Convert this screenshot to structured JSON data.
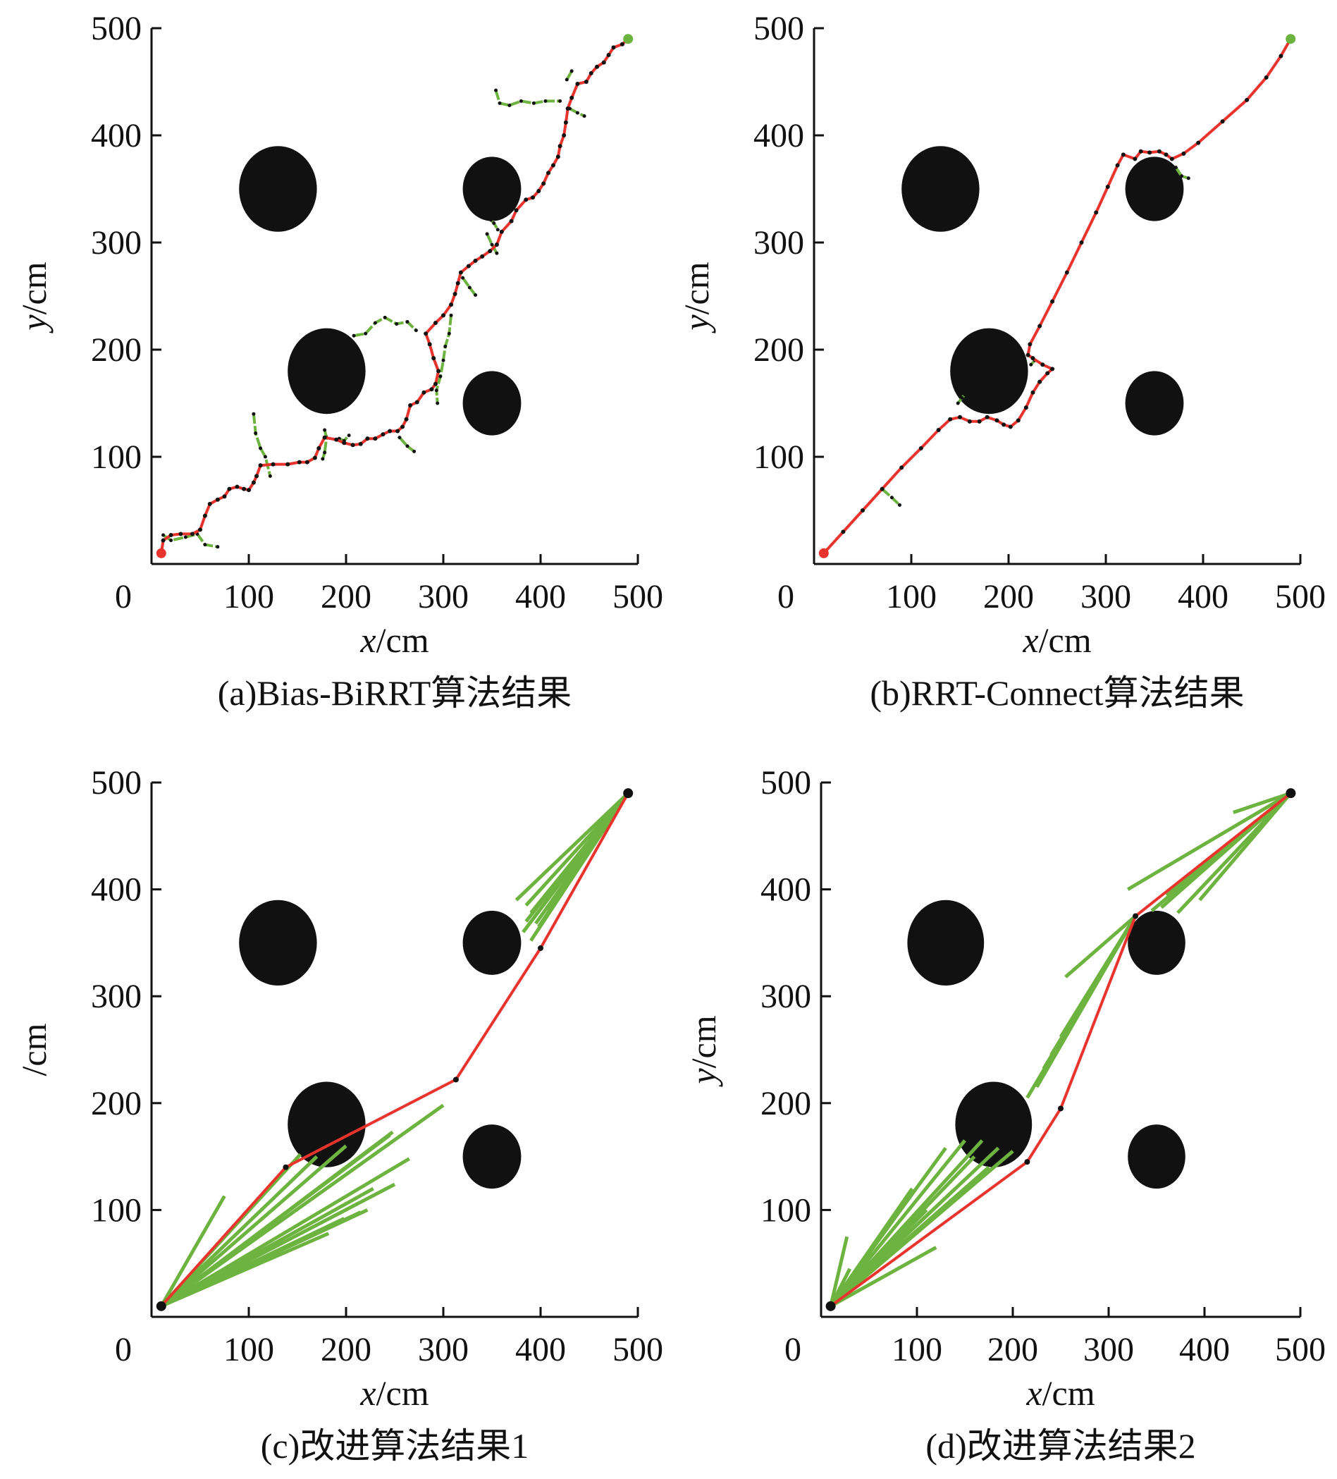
{
  "colors": {
    "path": "#e8342c",
    "tree": "#6db33f",
    "obstacle": "#111111",
    "node": "#111111",
    "axis": "#111111"
  },
  "chart_data": [
    {
      "type": "scatter",
      "caption": "(a)Bias-BiRRT算法结果",
      "xlabel_var": "x",
      "xlabel_unit": "/cm",
      "ylabel_var": "y",
      "ylabel_unit": "/cm",
      "xlim": [
        0,
        500
      ],
      "ylim": [
        0,
        500
      ],
      "xticks": [
        "0",
        "100",
        "200",
        "300",
        "400",
        "500"
      ],
      "yticks": [
        "100",
        "200",
        "300",
        "400",
        "500"
      ],
      "obstacles": [
        {
          "cx": 130,
          "cy": 350,
          "rx": 40,
          "ry": 40
        },
        {
          "cx": 180,
          "cy": 180,
          "rx": 40,
          "ry": 40
        },
        {
          "cx": 350,
          "cy": 350,
          "rx": 30,
          "ry": 30
        },
        {
          "cx": 350,
          "cy": 150,
          "rx": 30,
          "ry": 30
        }
      ],
      "start": [
        10,
        10
      ],
      "goal": [
        490,
        490
      ],
      "start_color": "#e8342c",
      "goal_color": "#6db33f",
      "branches": [
        [
          [
            12,
            27
          ],
          [
            20,
            22
          ],
          [
            35,
            25
          ],
          [
            47,
            28
          ],
          [
            55,
            18
          ],
          [
            68,
            16
          ]
        ],
        [
          [
            105,
            140
          ],
          [
            107,
            122
          ],
          [
            112,
            108
          ],
          [
            117,
            100
          ],
          [
            122,
            82
          ]
        ],
        [
          [
            178,
            125
          ],
          [
            180,
            118
          ],
          [
            178,
            104
          ],
          [
            176,
            98
          ]
        ],
        [
          [
            193,
            117
          ],
          [
            198,
            115
          ],
          [
            203,
            120
          ]
        ],
        [
          [
            255,
            118
          ],
          [
            263,
            110
          ],
          [
            270,
            105
          ]
        ],
        [
          [
            208,
            213
          ],
          [
            220,
            215
          ],
          [
            230,
            225
          ],
          [
            240,
            230
          ],
          [
            252,
            224
          ],
          [
            263,
            226
          ],
          [
            272,
            218
          ]
        ],
        [
          [
            308,
            232
          ],
          [
            306,
            215
          ],
          [
            302,
            203
          ],
          [
            300,
            190
          ],
          [
            297,
            175
          ],
          [
            293,
            162
          ],
          [
            294,
            150
          ]
        ],
        [
          [
            320,
            267
          ],
          [
            327,
            258
          ],
          [
            333,
            251
          ]
        ],
        [
          [
            345,
            308
          ],
          [
            350,
            298
          ],
          [
            355,
            290
          ]
        ],
        [
          [
            349,
            321
          ],
          [
            352,
            318
          ],
          [
            356,
            312
          ]
        ],
        [
          [
            354,
            442
          ],
          [
            358,
            430
          ],
          [
            368,
            428
          ],
          [
            380,
            432
          ],
          [
            393,
            430
          ],
          [
            405,
            432
          ],
          [
            420,
            432
          ]
        ],
        [
          [
            432,
            460
          ],
          [
            427,
            452
          ]
        ],
        [
          [
            430,
            425
          ],
          [
            438,
            421
          ],
          [
            445,
            418
          ]
        ]
      ],
      "path": [
        [
          10,
          10
        ],
        [
          12,
          22
        ],
        [
          20,
          27
        ],
        [
          30,
          28
        ],
        [
          42,
          28
        ],
        [
          50,
          32
        ],
        [
          55,
          45
        ],
        [
          60,
          56
        ],
        [
          68,
          60
        ],
        [
          75,
          63
        ],
        [
          80,
          70
        ],
        [
          88,
          72
        ],
        [
          95,
          70
        ],
        [
          100,
          69
        ],
        [
          105,
          76
        ],
        [
          108,
          82
        ],
        [
          112,
          92
        ],
        [
          125,
          93
        ],
        [
          140,
          93
        ],
        [
          152,
          95
        ],
        [
          160,
          95
        ],
        [
          168,
          99
        ],
        [
          172,
          108
        ],
        [
          178,
          118
        ],
        [
          190,
          116
        ],
        [
          198,
          113
        ],
        [
          207,
          111
        ],
        [
          215,
          112
        ],
        [
          222,
          117
        ],
        [
          230,
          117
        ],
        [
          238,
          121
        ],
        [
          245,
          124
        ],
        [
          253,
          124
        ],
        [
          258,
          128
        ],
        [
          262,
          135
        ],
        [
          266,
          148
        ],
        [
          273,
          151
        ],
        [
          280,
          160
        ],
        [
          288,
          163
        ],
        [
          292,
          168
        ],
        [
          295,
          180
        ],
        [
          290,
          192
        ],
        [
          286,
          205
        ],
        [
          282,
          215
        ],
        [
          292,
          225
        ],
        [
          300,
          232
        ],
        [
          308,
          242
        ],
        [
          312,
          252
        ],
        [
          315,
          262
        ],
        [
          318,
          272
        ],
        [
          326,
          278
        ],
        [
          333,
          283
        ],
        [
          340,
          287
        ],
        [
          348,
          292
        ],
        [
          355,
          298
        ],
        [
          360,
          310
        ],
        [
          370,
          320
        ],
        [
          375,
          330
        ],
        [
          385,
          340
        ],
        [
          392,
          342
        ],
        [
          398,
          348
        ],
        [
          403,
          355
        ],
        [
          408,
          365
        ],
        [
          413,
          372
        ],
        [
          418,
          380
        ],
        [
          420,
          390
        ],
        [
          424,
          400
        ],
        [
          426,
          412
        ],
        [
          428,
          425
        ],
        [
          432,
          435
        ],
        [
          438,
          448
        ],
        [
          447,
          450
        ],
        [
          452,
          458
        ],
        [
          458,
          464
        ],
        [
          465,
          468
        ],
        [
          470,
          475
        ],
        [
          475,
          482
        ],
        [
          484,
          485
        ],
        [
          490,
          490
        ]
      ]
    },
    {
      "type": "scatter",
      "caption": "(b)RRT-Connect算法结果",
      "xlabel_var": "x",
      "xlabel_unit": "/cm",
      "ylabel_var": "y",
      "ylabel_unit": "/cm",
      "xlim": [
        0,
        500
      ],
      "ylim": [
        0,
        500
      ],
      "xticks": [
        "0",
        "100",
        "200",
        "300",
        "400",
        "500"
      ],
      "yticks": [
        "100",
        "200",
        "300",
        "400",
        "500"
      ],
      "obstacles": [
        {
          "cx": 130,
          "cy": 350,
          "rx": 40,
          "ry": 40
        },
        {
          "cx": 180,
          "cy": 180,
          "rx": 40,
          "ry": 40
        },
        {
          "cx": 350,
          "cy": 350,
          "rx": 30,
          "ry": 30
        },
        {
          "cx": 350,
          "cy": 150,
          "rx": 30,
          "ry": 30
        }
      ],
      "start": [
        10,
        10
      ],
      "goal": [
        490,
        490
      ],
      "start_color": "#e8342c",
      "goal_color": "#6db33f",
      "branches": [
        [
          [
            70,
            70
          ],
          [
            80,
            62
          ],
          [
            88,
            55
          ]
        ],
        [
          [
            148,
            150
          ],
          [
            152,
            155
          ],
          [
            155,
            158
          ]
        ],
        [
          [
            223,
            186
          ],
          [
            227,
            190
          ]
        ],
        [
          [
            372,
            370
          ],
          [
            378,
            362
          ],
          [
            385,
            360
          ]
        ]
      ],
      "path": [
        [
          10,
          10
        ],
        [
          30,
          30
        ],
        [
          50,
          50
        ],
        [
          70,
          70
        ],
        [
          90,
          90
        ],
        [
          110,
          108
        ],
        [
          128,
          125
        ],
        [
          140,
          135
        ],
        [
          150,
          137
        ],
        [
          160,
          133
        ],
        [
          170,
          133
        ],
        [
          178,
          137
        ],
        [
          188,
          134
        ],
        [
          195,
          130
        ],
        [
          202,
          128
        ],
        [
          210,
          134
        ],
        [
          218,
          146
        ],
        [
          225,
          160
        ],
        [
          232,
          170
        ],
        [
          240,
          178
        ],
        [
          245,
          182
        ],
        [
          235,
          186
        ],
        [
          225,
          192
        ],
        [
          220,
          195
        ],
        [
          222,
          205
        ],
        [
          232,
          222
        ],
        [
          245,
          245
        ],
        [
          260,
          272
        ],
        [
          275,
          300
        ],
        [
          290,
          328
        ],
        [
          302,
          352
        ],
        [
          312,
          372
        ],
        [
          318,
          382
        ],
        [
          330,
          378
        ],
        [
          336,
          385
        ],
        [
          345,
          384
        ],
        [
          355,
          385
        ],
        [
          362,
          382
        ],
        [
          368,
          378
        ],
        [
          380,
          383
        ],
        [
          395,
          393
        ],
        [
          420,
          413
        ],
        [
          445,
          433
        ],
        [
          465,
          454
        ],
        [
          480,
          474
        ],
        [
          490,
          490
        ]
      ]
    },
    {
      "type": "scatter",
      "caption": "(c)改进算法结果1",
      "xlabel_var": "x",
      "xlabel_unit": "/cm",
      "ylabel_var": "",
      "ylabel_unit": "/cm",
      "xlim": [
        0,
        500
      ],
      "ylim": [
        0,
        500
      ],
      "xticks": [
        "0",
        "100",
        "200",
        "300",
        "400",
        "500"
      ],
      "yticks": [
        "100",
        "200",
        "300",
        "400",
        "500"
      ],
      "obstacles": [
        {
          "cx": 130,
          "cy": 350,
          "rx": 40,
          "ry": 40
        },
        {
          "cx": 180,
          "cy": 180,
          "rx": 40,
          "ry": 40
        },
        {
          "cx": 350,
          "cy": 350,
          "rx": 30,
          "ry": 30
        },
        {
          "cx": 350,
          "cy": 150,
          "rx": 30,
          "ry": 30
        }
      ],
      "start": [
        10,
        10
      ],
      "goal": [
        490,
        490
      ],
      "start_color": "#111111",
      "goal_color": "#111111",
      "fans_from_start": [
        [
          75,
          113
        ],
        [
          153,
          152
        ],
        [
          170,
          150
        ],
        [
          200,
          160
        ],
        [
          248,
          173
        ],
        [
          265,
          148
        ],
        [
          250,
          124
        ],
        [
          222,
          100
        ],
        [
          198,
          92
        ],
        [
          182,
          78
        ],
        [
          245,
          170
        ],
        [
          300,
          198
        ],
        [
          215,
          98
        ],
        [
          228,
          120
        ]
      ],
      "fans_from_goal": [
        [
          375,
          390
        ],
        [
          382,
          360
        ],
        [
          390,
          378
        ],
        [
          395,
          368
        ],
        [
          390,
          352
        ],
        [
          385,
          385
        ],
        [
          410,
          400
        ],
        [
          398,
          365
        ],
        [
          385,
          370
        ],
        [
          408,
          380
        ]
      ],
      "path": [
        [
          10,
          10
        ],
        [
          138,
          140
        ],
        [
          313,
          222
        ],
        [
          400,
          345
        ],
        [
          490,
          490
        ]
      ]
    },
    {
      "type": "scatter",
      "caption": "(d)改进算法结果2",
      "xlabel_var": "x",
      "xlabel_unit": "/cm",
      "ylabel_var": "y",
      "ylabel_unit": "/cm",
      "xlim": [
        0,
        500
      ],
      "ylim": [
        0,
        500
      ],
      "xticks": [
        "0",
        "100",
        "200",
        "300",
        "400",
        "500"
      ],
      "yticks": [
        "100",
        "200",
        "300",
        "400",
        "500"
      ],
      "obstacles": [
        {
          "cx": 130,
          "cy": 350,
          "rx": 40,
          "ry": 40
        },
        {
          "cx": 180,
          "cy": 180,
          "rx": 40,
          "ry": 40
        },
        {
          "cx": 350,
          "cy": 350,
          "rx": 30,
          "ry": 30
        },
        {
          "cx": 350,
          "cy": 150,
          "rx": 30,
          "ry": 30
        }
      ],
      "start": [
        10,
        10
      ],
      "goal": [
        490,
        490
      ],
      "start_color": "#111111",
      "goal_color": "#111111",
      "fans_from_start": [
        [
          27,
          75
        ],
        [
          30,
          45
        ],
        [
          95,
          120
        ],
        [
          130,
          158
        ],
        [
          150,
          165
        ],
        [
          168,
          165
        ],
        [
          185,
          158
        ],
        [
          200,
          155
        ],
        [
          120,
          65
        ],
        [
          175,
          140
        ],
        [
          160,
          150
        ],
        [
          140,
          120
        ],
        [
          110,
          100
        ]
      ],
      "fans_from_mid": [
        [
          255,
          318
        ],
        [
          250,
          262
        ],
        [
          215,
          205
        ],
        [
          232,
          232
        ],
        [
          240,
          245
        ],
        [
          265,
          280
        ],
        [
          225,
          215
        ]
      ],
      "fans_from_goal": [
        [
          320,
          400
        ],
        [
          345,
          380
        ],
        [
          355,
          383
        ],
        [
          372,
          378
        ],
        [
          395,
          390
        ],
        [
          430,
          472
        ],
        [
          380,
          410
        ],
        [
          410,
          430
        ],
        [
          360,
          395
        ]
      ],
      "mid_point": [
        328,
        375
      ],
      "path": [
        [
          10,
          10
        ],
        [
          215,
          145
        ],
        [
          250,
          195
        ],
        [
          328,
          375
        ],
        [
          490,
          490
        ]
      ]
    }
  ]
}
